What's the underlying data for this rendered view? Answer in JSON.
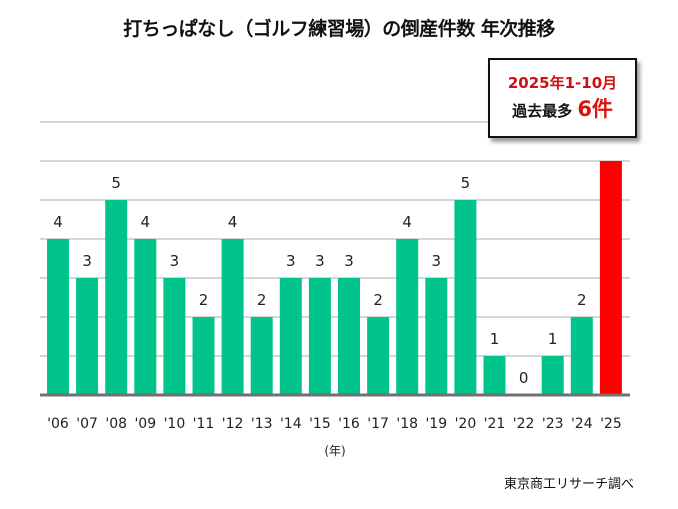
{
  "chart_data": {
    "type": "bar",
    "title": "打ちっぱなし（ゴルフ練習場）の倒産件数 年次推移",
    "categories": [
      "'06",
      "'07",
      "'08",
      "'09",
      "'10",
      "'11",
      "'12",
      "'13",
      "'14",
      "'15",
      "'16",
      "'17",
      "'18",
      "'19",
      "'20",
      "'21",
      "'22",
      "'23",
      "'24",
      "'25"
    ],
    "values": [
      4,
      3,
      5,
      4,
      3,
      2,
      4,
      2,
      3,
      3,
      3,
      2,
      4,
      3,
      5,
      1,
      0,
      1,
      2,
      6
    ],
    "data_labels": [
      "4",
      "3",
      "5",
      "4",
      "3",
      "2",
      "4",
      "2",
      "3",
      "3",
      "3",
      "2",
      "4",
      "3",
      "5",
      "1",
      "0",
      "1",
      "2",
      ""
    ],
    "xlabel": "(年)",
    "ylabel": "",
    "ylim": [
      0,
      7
    ],
    "grid": true,
    "colors": {
      "default": "#00c48c",
      "highlight": "#ff0000"
    },
    "highlight_index": 19
  },
  "callout": {
    "line1": "2025年1-10月",
    "line2": "過去最多",
    "line2_value": "6件"
  },
  "source": "東京商工リサーチ調べ"
}
